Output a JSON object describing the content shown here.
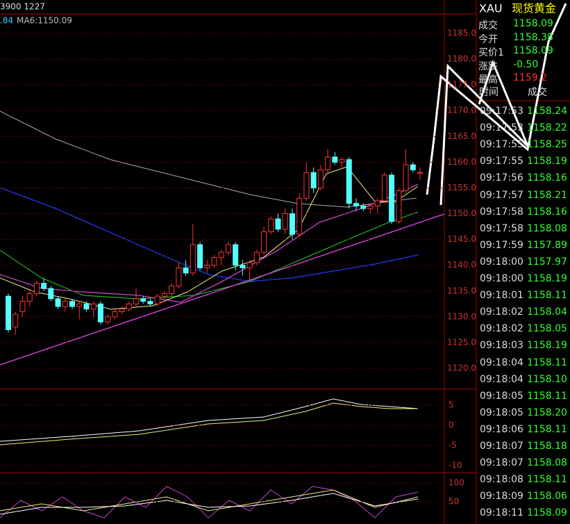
{
  "header": {
    "code": "3900 1227",
    "ma_prefix": ".84",
    "ma_label": "MA6:1150.09"
  },
  "quote": {
    "symbol": "XAU",
    "name": "现货黄金",
    "rows": [
      [
        "成交",
        "1158.09"
      ],
      [
        "今开",
        "1158.38"
      ],
      [
        "买价1",
        "1158.09"
      ],
      [
        "涨跌",
        "-0.50"
      ],
      [
        "最高",
        "1159.2"
      ]
    ]
  },
  "price_axis": {
    "labels": [
      {
        "value": 1185,
        "label": "1185.0"
      },
      {
        "value": 1180,
        "label": "1180.0"
      },
      {
        "value": 1175,
        "label": "1175.0"
      },
      {
        "value": 1170,
        "label": "1170.0"
      },
      {
        "value": 1165,
        "label": "1165.0"
      },
      {
        "value": 1160,
        "label": "1160.0"
      },
      {
        "value": 1155,
        "label": "1155.0"
      },
      {
        "value": 1150,
        "label": "1150.0"
      },
      {
        "value": 1145,
        "label": "1145.0"
      },
      {
        "value": 1140,
        "label": "1140.0"
      },
      {
        "value": 1135,
        "label": "1135.0"
      },
      {
        "value": 1130,
        "label": "1130.0"
      },
      {
        "value": 1125,
        "label": "1125.0"
      },
      {
        "value": 1120,
        "label": "1120.0"
      }
    ]
  },
  "macd_axis": {
    "labels": [
      5,
      0,
      -5,
      -10
    ]
  },
  "kdj_axis": {
    "labels": [
      100,
      50
    ]
  },
  "candles": [
    [
      1134,
      1134.5,
      1127,
      1127.5
    ],
    [
      1128,
      1131,
      1126.5,
      1130.5
    ],
    [
      1131,
      1134,
      1130,
      1133
    ],
    [
      1133,
      1135,
      1132,
      1134.5
    ],
    [
      1134.5,
      1137,
      1134,
      1136.5
    ],
    [
      1136.5,
      1137.5,
      1135,
      1135.5
    ],
    [
      1135.5,
      1136,
      1133,
      1133.5
    ],
    [
      1133.5,
      1134,
      1131.5,
      1132
    ],
    [
      1132,
      1133.5,
      1131,
      1133
    ],
    [
      1133,
      1133.5,
      1131.5,
      1132
    ],
    [
      1132,
      1133,
      1129.5,
      1132.5
    ],
    [
      1132.5,
      1133,
      1131,
      1131.5
    ],
    [
      1131.5,
      1133,
      1130,
      1132.5
    ],
    [
      1132.5,
      1133,
      1128.5,
      1129
    ],
    [
      1129,
      1130.5,
      1128.5,
      1130
    ],
    [
      1130,
      1131.5,
      1129.5,
      1131
    ],
    [
      1131,
      1132,
      1130.5,
      1131.5
    ],
    [
      1131.5,
      1133,
      1131,
      1132.5
    ],
    [
      1132.5,
      1135.5,
      1132,
      1133.5
    ],
    [
      1133.5,
      1134,
      1132.5,
      1133
    ],
    [
      1133,
      1133.5,
      1132,
      1132.5
    ],
    [
      1132.5,
      1134.5,
      1132,
      1134
    ],
    [
      1134,
      1135,
      1133,
      1134.5
    ],
    [
      1134.5,
      1136.5,
      1134,
      1136
    ],
    [
      1136,
      1140.5,
      1135.5,
      1139.5
    ],
    [
      1139.5,
      1141,
      1138,
      1138.5
    ],
    [
      1138.5,
      1148,
      1138,
      1144
    ],
    [
      1144,
      1144.5,
      1139,
      1139.5
    ],
    [
      1139.5,
      1141,
      1138.5,
      1140
    ],
    [
      1140,
      1142,
      1139.5,
      1141.5
    ],
    [
      1141.5,
      1143,
      1140,
      1142.5
    ],
    [
      1142.5,
      1144.5,
      1142,
      1144
    ],
    [
      1144,
      1144.5,
      1139,
      1140
    ],
    [
      1140,
      1141,
      1138,
      1139.5
    ],
    [
      1139.5,
      1141,
      1137,
      1140.5
    ],
    [
      1140.5,
      1143,
      1140,
      1142.5
    ],
    [
      1142.5,
      1147.5,
      1142,
      1146.5
    ],
    [
      1146.5,
      1149.5,
      1146,
      1149
    ],
    [
      1149,
      1150,
      1146.5,
      1147
    ],
    [
      1147,
      1151,
      1146,
      1150
    ],
    [
      1150,
      1151,
      1145,
      1146
    ],
    [
      1146,
      1154,
      1145.5,
      1153
    ],
    [
      1153,
      1160,
      1152.5,
      1158
    ],
    [
      1158,
      1159,
      1154,
      1155
    ],
    [
      1155,
      1159.5,
      1154.5,
      1158.5
    ],
    [
      1158.5,
      1162.5,
      1158,
      1161
    ],
    [
      1161,
      1162,
      1159.5,
      1160
    ],
    [
      1160,
      1161,
      1159,
      1160.5
    ],
    [
      1160.5,
      1161,
      1151,
      1152
    ],
    [
      1152,
      1153,
      1150.5,
      1151.5
    ],
    [
      1151.5,
      1152,
      1150.5,
      1151
    ],
    [
      1151,
      1152,
      1150,
      1151.5
    ],
    [
      1151.5,
      1153,
      1150,
      1152.5
    ],
    [
      1152.5,
      1158,
      1152,
      1157.5
    ],
    [
      1157.5,
      1158,
      1148,
      1148.5
    ],
    [
      1148.5,
      1155,
      1148,
      1154.5
    ],
    [
      1154.5,
      1162.5,
      1154,
      1159.5
    ],
    [
      1159.5,
      1160,
      1158,
      1158.5
    ],
    [
      1158,
      1159,
      1156.5,
      1158
    ]
  ],
  "ticks": {
    "header": [
      "时间",
      "成交"
    ],
    "rows": [
      [
        "09:17:53",
        "1158.24"
      ],
      [
        "09:17:53",
        "1158.22"
      ],
      [
        "09:17:55",
        "1158.25"
      ],
      [
        "09:17:55",
        "1158.19"
      ],
      [
        "09:17:56",
        "1158.16"
      ],
      [
        "09:17:57",
        "1158.21"
      ],
      [
        "09:17:58",
        "1158.16"
      ],
      [
        "09:17:58",
        "1158.08"
      ],
      [
        "09:17:59",
        "1157.89"
      ],
      [
        "09:18:00",
        "1157.97"
      ],
      [
        "09:18:00",
        "1158.19"
      ],
      [
        "09:18:01",
        "1158.11"
      ],
      [
        "09:18:02",
        "1158.04"
      ],
      [
        "09:18:02",
        "1158.05"
      ],
      [
        "09:18:03",
        "1158.19"
      ],
      [
        "09:18:04",
        "1158.11"
      ],
      [
        "09:18:04",
        "1158.10"
      ],
      [
        "09:18:05",
        "1158.11"
      ],
      [
        "09:18:05",
        "1158.20"
      ],
      [
        "09:18:06",
        "1158.11"
      ],
      [
        "09:18:07",
        "1158.18"
      ],
      [
        "09:18:07",
        "1158.08"
      ],
      [
        "09:18:08",
        "1158.11"
      ],
      [
        "09:18:09",
        "1158.06"
      ],
      [
        "09:18:11",
        "1158.09"
      ]
    ]
  }
}
